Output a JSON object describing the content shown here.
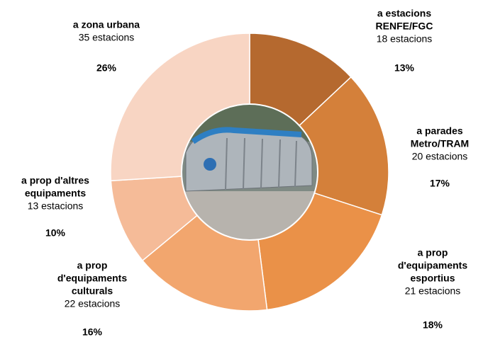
{
  "chart_data": {
    "type": "donut",
    "categories": [
      [
        "a estacions",
        "RENFE/FGC"
      ],
      [
        "a parades",
        "Metro/TRAM"
      ],
      [
        "a prop",
        "d'equipaments",
        "esportius"
      ],
      [
        "a prop",
        "d'equipaments",
        "culturals"
      ],
      [
        "a prop d'altres",
        "equipaments"
      ],
      [
        "a zona urbana"
      ]
    ],
    "station_labels": [
      "18 estacions",
      "20 estacions",
      "21 estacions",
      "22 estacions",
      "13 estacions",
      "35 estacions"
    ],
    "values": [
      13,
      17,
      18,
      16,
      10,
      26
    ],
    "value_labels": [
      "13%",
      "17%",
      "18%",
      "16%",
      "10%",
      "26%"
    ],
    "colors": [
      "#b5692f",
      "#d4803a",
      "#ea9148",
      "#f2a66e",
      "#f5bb98",
      "#f8d5c3"
    ]
  }
}
